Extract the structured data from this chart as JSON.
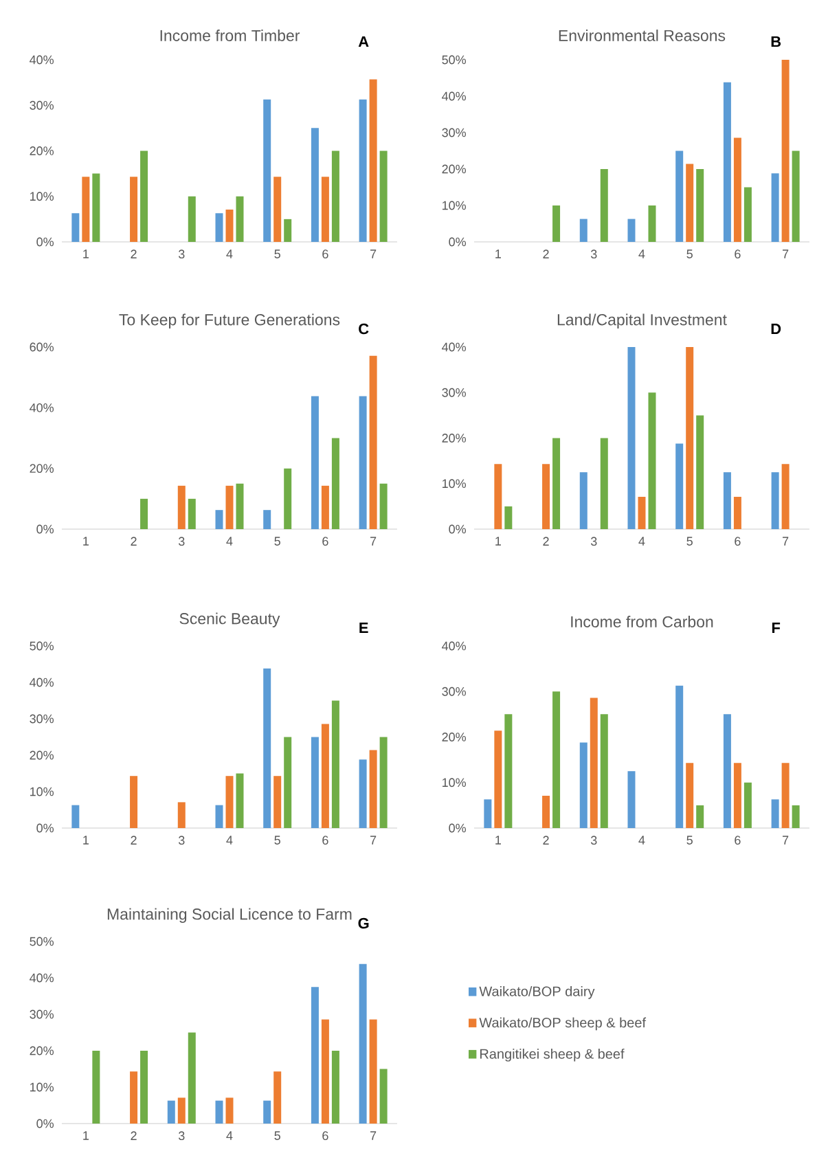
{
  "chart_data": [
    {
      "type": "bar",
      "title": "Income from Timber",
      "annotations": [
        "A"
      ],
      "categories": [
        "1",
        "2",
        "3",
        "4",
        "5",
        "6",
        "7"
      ],
      "ylim": [
        0,
        40
      ],
      "yticks": [
        {
          "value": 0,
          "label": "0%"
        },
        {
          "value": 10,
          "label": "10%"
        },
        {
          "value": 20,
          "label": "20%"
        },
        {
          "value": 30,
          "label": "30%"
        },
        {
          "value": 40,
          "label": "40%"
        }
      ],
      "legend": false,
      "series": [
        {
          "color": "#5b9bd5",
          "values": [
            6.3,
            0,
            0,
            6.3,
            31.3,
            25,
            31.3
          ]
        },
        {
          "color": "#ed7d31",
          "values": [
            14.3,
            14.3,
            0,
            7.1,
            14.3,
            14.3,
            35.7
          ]
        },
        {
          "color": "#70ad47",
          "values": [
            15,
            20,
            10,
            10,
            5,
            20,
            20
          ]
        }
      ]
    },
    {
      "type": "bar",
      "title": "Environmental Reasons",
      "annotations": [
        "B"
      ],
      "categories": [
        "1",
        "2",
        "3",
        "4",
        "5",
        "6",
        "7"
      ],
      "ylim": [
        0,
        50
      ],
      "yticks": [
        {
          "value": 0,
          "label": "0%"
        },
        {
          "value": 10,
          "label": "10%"
        },
        {
          "value": 20,
          "label": "20%"
        },
        {
          "value": 30,
          "label": "30%"
        },
        {
          "value": 40,
          "label": "40%"
        },
        {
          "value": 50,
          "label": "50%"
        }
      ],
      "legend": false,
      "series": [
        {
          "color": "#5b9bd5",
          "values": [
            0,
            0,
            6.3,
            6.3,
            25,
            43.8,
            18.8
          ]
        },
        {
          "color": "#ed7d31",
          "values": [
            0,
            0,
            0,
            0,
            21.4,
            28.6,
            50
          ]
        },
        {
          "color": "#70ad47",
          "values": [
            0,
            10,
            20,
            10,
            20,
            15,
            25
          ]
        }
      ]
    },
    {
      "type": "bar",
      "title": "To Keep for Future Generations",
      "annotations": [
        "C"
      ],
      "categories": [
        "1",
        "2",
        "3",
        "4",
        "5",
        "6",
        "7"
      ],
      "ylim": [
        0,
        60
      ],
      "yticks": [
        {
          "value": 0,
          "label": "0%"
        },
        {
          "value": 20,
          "label": "20%"
        },
        {
          "value": 40,
          "label": "40%"
        },
        {
          "value": 60,
          "label": "60%"
        }
      ],
      "legend": false,
      "series": [
        {
          "color": "#5b9bd5",
          "values": [
            0,
            0,
            0,
            6.3,
            6.3,
            43.8,
            43.8
          ]
        },
        {
          "color": "#ed7d31",
          "values": [
            0,
            0,
            14.3,
            14.3,
            0,
            14.3,
            57.1
          ]
        },
        {
          "color": "#70ad47",
          "values": [
            0,
            10,
            10,
            15,
            20,
            30,
            15
          ]
        }
      ]
    },
    {
      "type": "bar",
      "title": "Land/Capital Investment",
      "annotations": [
        "D"
      ],
      "categories": [
        "1",
        "2",
        "3",
        "4",
        "5",
        "6",
        "7"
      ],
      "ylim": [
        0,
        40
      ],
      "yticks": [
        {
          "value": 0,
          "label": "0%"
        },
        {
          "value": 10,
          "label": "10%"
        },
        {
          "value": 20,
          "label": "20%"
        },
        {
          "value": 30,
          "label": "30%"
        },
        {
          "value": 40,
          "label": "40%"
        }
      ],
      "legend": false,
      "series": [
        {
          "color": "#5b9bd5",
          "values": [
            0,
            0,
            12.5,
            40,
            18.8,
            12.5,
            12.5
          ]
        },
        {
          "color": "#ed7d31",
          "values": [
            14.3,
            14.3,
            0,
            7.1,
            40,
            7.1,
            14.3
          ]
        },
        {
          "color": "#70ad47",
          "values": [
            5,
            20,
            20,
            30,
            25,
            0,
            0
          ]
        }
      ]
    },
    {
      "type": "bar",
      "title": "Scenic Beauty",
      "annotations": [
        "E"
      ],
      "categories": [
        "1",
        "2",
        "3",
        "4",
        "5",
        "6",
        "7"
      ],
      "ylim": [
        0,
        50
      ],
      "yticks": [
        {
          "value": 0,
          "label": "0%"
        },
        {
          "value": 10,
          "label": "10%"
        },
        {
          "value": 20,
          "label": "20%"
        },
        {
          "value": 30,
          "label": "30%"
        },
        {
          "value": 40,
          "label": "40%"
        },
        {
          "value": 50,
          "label": "50%"
        }
      ],
      "legend": false,
      "series": [
        {
          "color": "#5b9bd5",
          "values": [
            6.3,
            0,
            0,
            6.3,
            43.8,
            25,
            18.8
          ]
        },
        {
          "color": "#ed7d31",
          "values": [
            0,
            14.3,
            7.1,
            14.3,
            14.3,
            28.6,
            21.4
          ]
        },
        {
          "color": "#70ad47",
          "values": [
            0,
            0,
            0,
            15,
            25,
            35,
            25
          ]
        }
      ]
    },
    {
      "type": "bar",
      "title": "Income from Carbon",
      "annotations": [
        "F"
      ],
      "categories": [
        "1",
        "2",
        "3",
        "4",
        "5",
        "6",
        "7"
      ],
      "ylim": [
        0,
        40
      ],
      "yticks": [
        {
          "value": 0,
          "label": "0%"
        },
        {
          "value": 10,
          "label": "10%"
        },
        {
          "value": 20,
          "label": "20%"
        },
        {
          "value": 30,
          "label": "30%"
        },
        {
          "value": 40,
          "label": "40%"
        }
      ],
      "legend": false,
      "series": [
        {
          "color": "#5b9bd5",
          "values": [
            6.3,
            0,
            18.8,
            12.5,
            31.3,
            25,
            6.3
          ]
        },
        {
          "color": "#ed7d31",
          "values": [
            21.4,
            7.1,
            28.6,
            0,
            14.3,
            14.3,
            14.3
          ]
        },
        {
          "color": "#70ad47",
          "values": [
            25,
            30,
            25,
            0,
            5,
            10,
            5
          ]
        }
      ]
    },
    {
      "type": "bar",
      "title": "Maintaining Social Licence to Farm",
      "annotations": [
        "G"
      ],
      "categories": [
        "1",
        "2",
        "3",
        "4",
        "5",
        "6",
        "7"
      ],
      "ylim": [
        0,
        50
      ],
      "yticks": [
        {
          "value": 0,
          "label": "0%"
        },
        {
          "value": 10,
          "label": "10%"
        },
        {
          "value": 20,
          "label": "20%"
        },
        {
          "value": 30,
          "label": "30%"
        },
        {
          "value": 40,
          "label": "40%"
        },
        {
          "value": 50,
          "label": "50%"
        }
      ],
      "legend": "right",
      "series": [
        {
          "name": "Waikato/BOP dairy",
          "color": "#5b9bd5",
          "values": [
            0,
            0,
            6.3,
            6.3,
            6.3,
            37.5,
            43.8
          ]
        },
        {
          "name": "Waikato/BOP sheep & beef",
          "color": "#ed7d31",
          "values": [
            0,
            14.3,
            7.1,
            7.1,
            14.3,
            28.6,
            28.6
          ]
        },
        {
          "name": "Rangitikei sheep & beef",
          "color": "#70ad47",
          "values": [
            20,
            20,
            25,
            0,
            0,
            20,
            15
          ]
        }
      ]
    }
  ]
}
